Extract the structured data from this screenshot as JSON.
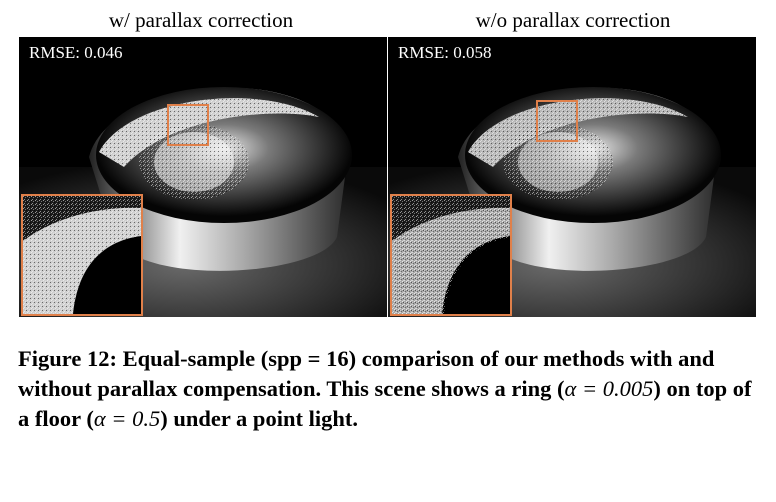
{
  "panels": [
    {
      "title": "w/ parallax correction",
      "rmse_text": "RMSE: 0.046"
    },
    {
      "title": "w/o parallax correction",
      "rmse_text": "RMSE: 0.058"
    }
  ],
  "caption": {
    "label": "Figure 12:",
    "text_1": "Equal-sample (spp = 16) comparison of our methods with and without parallax compensation. This scene shows a ring (",
    "alpha_1": "α = 0.005",
    "text_2": ") on top of a floor (",
    "alpha_2": "α = 0.5",
    "text_3": ") under a point light."
  },
  "colors": {
    "highlight_box": "#e0804a",
    "background": "#000000"
  }
}
